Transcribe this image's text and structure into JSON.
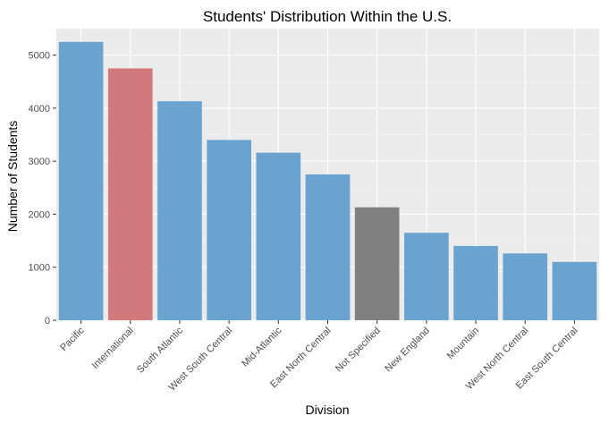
{
  "chart_data": {
    "type": "bar",
    "title": "Students' Distribution Within the U.S.",
    "xlabel": "Division",
    "ylabel": "Number of Students",
    "categories": [
      "Pacific",
      "International",
      "South Atlantic",
      "West South Central",
      "Mid-Atlantic",
      "East North Central",
      "Not Specified",
      "New England",
      "Mountain",
      "West North Central",
      "East South Central"
    ],
    "values": [
      5250,
      4750,
      4130,
      3400,
      3160,
      2750,
      2130,
      1650,
      1400,
      1260,
      1100
    ],
    "colors": [
      "#6aa3cf",
      "#d27a7b",
      "#6aa3cf",
      "#6aa3cf",
      "#6aa3cf",
      "#6aa3cf",
      "#808080",
      "#6aa3cf",
      "#6aa3cf",
      "#6aa3cf",
      "#6aa3cf"
    ],
    "ylim": [
      0,
      5500
    ],
    "yticks": [
      0,
      1000,
      2000,
      3000,
      4000,
      5000
    ],
    "panel_background": "#ebebeb",
    "grid": true,
    "legend": "none"
  }
}
